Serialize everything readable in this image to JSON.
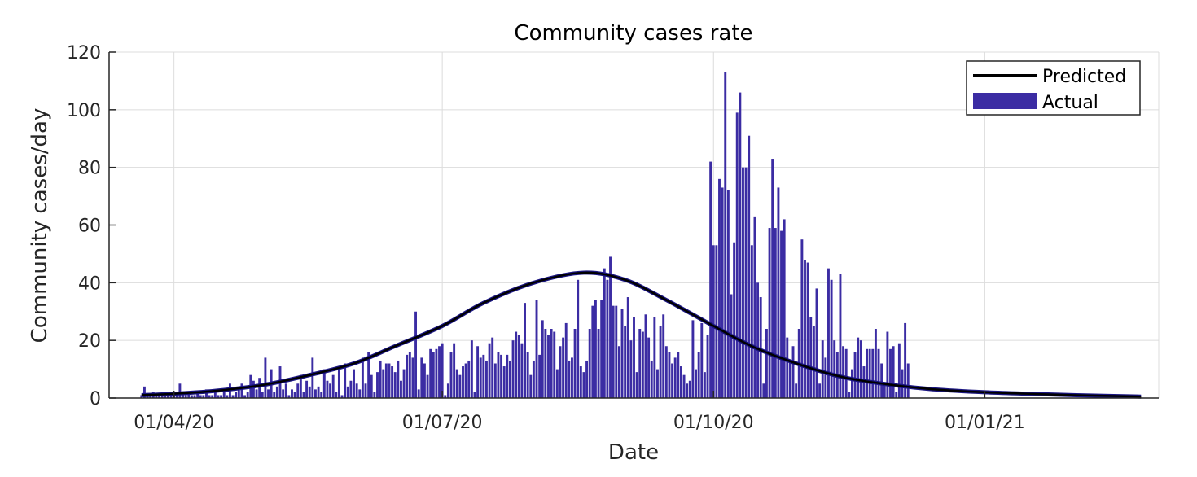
{
  "chart_data": {
    "type": "bar",
    "title": "Community cases rate",
    "xlabel": "Date",
    "ylabel": "Community cases/day",
    "ylim": [
      0,
      120
    ],
    "xlim": [
      "2020-03-10",
      "2021-03-01"
    ],
    "grid": true,
    "legend_position": "top-right",
    "x_ticks": [
      {
        "date": "2020-04-01",
        "label": "01/04/20"
      },
      {
        "date": "2020-07-01",
        "label": "01/07/20"
      },
      {
        "date": "2020-10-01",
        "label": "01/10/20"
      },
      {
        "date": "2021-01-01",
        "label": "01/01/21"
      }
    ],
    "y_ticks": [
      0,
      20,
      40,
      60,
      80,
      100,
      120
    ],
    "series": [
      {
        "name": "Actual",
        "kind": "bar",
        "color": "#3b2ca3",
        "start_date": "2020-03-21",
        "values": [
          1,
          4,
          1,
          1,
          2,
          1,
          1,
          2,
          1,
          1,
          2,
          1,
          1,
          5,
          1,
          1,
          2,
          1,
          1,
          2,
          1,
          1,
          3,
          1,
          1,
          2,
          1,
          1,
          3,
          1,
          5,
          1,
          2,
          3,
          5,
          1,
          2,
          8,
          6,
          3,
          7,
          2,
          14,
          3,
          10,
          2,
          4,
          11,
          3,
          5,
          1,
          3,
          2,
          5,
          8,
          2,
          6,
          4,
          14,
          3,
          4,
          2,
          10,
          6,
          5,
          8,
          2,
          11,
          1,
          12,
          4,
          6,
          10,
          5,
          3,
          14,
          5,
          16,
          8,
          2,
          9,
          13,
          10,
          12,
          12,
          11,
          9,
          13,
          6,
          10,
          15,
          16,
          14,
          30,
          3,
          14,
          12,
          8,
          17,
          16,
          17,
          18,
          19,
          1,
          5,
          16,
          19,
          10,
          8,
          11,
          12,
          13,
          20,
          2,
          18,
          14,
          15,
          13,
          19,
          21,
          12,
          16,
          15,
          11,
          15,
          13,
          20,
          23,
          22,
          19,
          33,
          16,
          8,
          13,
          34,
          15,
          27,
          24,
          22,
          24,
          23,
          10,
          18,
          21,
          26,
          13,
          14,
          24,
          41,
          11,
          9,
          13,
          24,
          32,
          34,
          24,
          34,
          45,
          41,
          49,
          32,
          32,
          18,
          31,
          25,
          35,
          20,
          28,
          9,
          24,
          23,
          29,
          21,
          13,
          28,
          10,
          25,
          29,
          18,
          16,
          12,
          14,
          16,
          11,
          8,
          5,
          6,
          27,
          10,
          16,
          26,
          9,
          22,
          82,
          53,
          53,
          76,
          73,
          113,
          72,
          36,
          54,
          99,
          106,
          80,
          80,
          91,
          53,
          63,
          40,
          35,
          5,
          24,
          59,
          83,
          59,
          73,
          58,
          62,
          21,
          13,
          18,
          5,
          24,
          55,
          48,
          47,
          28,
          25,
          38,
          5,
          20,
          14,
          45,
          41,
          20,
          16,
          43,
          18,
          17,
          2,
          10,
          16,
          21,
          20,
          11,
          17,
          17,
          17,
          24,
          17,
          12,
          5,
          23,
          17,
          18,
          2,
          19,
          10,
          26,
          12
        ]
      },
      {
        "name": "Predicted",
        "kind": "line",
        "color": "#000000",
        "start_date": "2020-03-21",
        "end_date": "2021-02-23",
        "peak_date": "2020-08-18",
        "peak_value": 43.5,
        "points": [
          {
            "date": "2020-03-21",
            "value": 1
          },
          {
            "date": "2020-04-01",
            "value": 1.5
          },
          {
            "date": "2020-04-15",
            "value": 2.5
          },
          {
            "date": "2020-05-01",
            "value": 4.5
          },
          {
            "date": "2020-05-15",
            "value": 7.5
          },
          {
            "date": "2020-06-01",
            "value": 12
          },
          {
            "date": "2020-06-15",
            "value": 18
          },
          {
            "date": "2020-07-01",
            "value": 25
          },
          {
            "date": "2020-07-15",
            "value": 33
          },
          {
            "date": "2020-08-01",
            "value": 40
          },
          {
            "date": "2020-08-18",
            "value": 43.5
          },
          {
            "date": "2020-09-01",
            "value": 41
          },
          {
            "date": "2020-09-15",
            "value": 34
          },
          {
            "date": "2020-10-01",
            "value": 25
          },
          {
            "date": "2020-10-15",
            "value": 17.5
          },
          {
            "date": "2020-11-01",
            "value": 11
          },
          {
            "date": "2020-11-15",
            "value": 7
          },
          {
            "date": "2020-12-01",
            "value": 4.5
          },
          {
            "date": "2020-12-15",
            "value": 3
          },
          {
            "date": "2021-01-01",
            "value": 2
          },
          {
            "date": "2021-01-15",
            "value": 1.5
          },
          {
            "date": "2021-02-01",
            "value": 1
          },
          {
            "date": "2021-02-23",
            "value": 0.5
          }
        ]
      }
    ]
  }
}
